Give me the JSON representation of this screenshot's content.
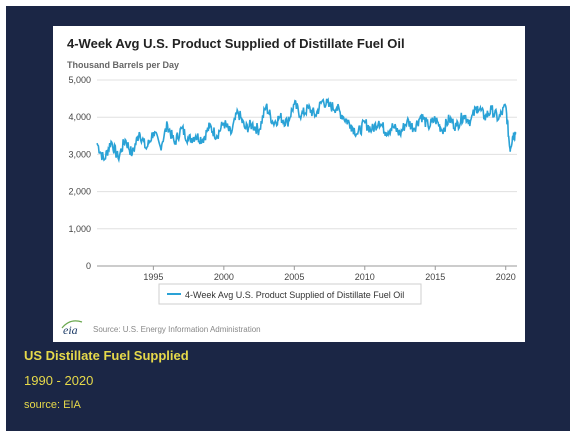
{
  "caption": {
    "title": "US Distillate Fuel Supplied",
    "years": "1990 - 2020",
    "source": "source: EIA"
  },
  "footer": {
    "logo_text": "eia",
    "source_text": "Source: U.S. Energy Information Administration"
  },
  "colors": {
    "background": "#1b2645",
    "caption_text": "#e6d94a",
    "series_line": "#2aa2d6",
    "gridline": "#e0e0e0"
  },
  "chart_data": {
    "type": "line",
    "title": "4-Week Avg U.S. Product Supplied of Distillate Fuel Oil",
    "subtitle": "Thousand Barrels per Day",
    "xlabel": "",
    "ylabel": "",
    "xlim": [
      1991,
      2020.8
    ],
    "ylim": [
      0,
      5000
    ],
    "x_ticks": [
      "1995",
      "2000",
      "2005",
      "2010",
      "2015",
      "2020"
    ],
    "y_ticks": [
      "0",
      "1,000",
      "2,000",
      "3,000",
      "4,000",
      "5,000"
    ],
    "grid": "horizontal",
    "legend_position": "bottom",
    "series": [
      {
        "name": "4-Week Avg U.S. Product Supplied of Distillate Fuel Oil",
        "x": [
          1991.0,
          1991.5,
          1992.0,
          1992.5,
          1993.0,
          1993.5,
          1994.0,
          1994.5,
          1995.0,
          1995.5,
          1996.0,
          1996.5,
          1997.0,
          1997.5,
          1998.0,
          1998.5,
          1999.0,
          1999.5,
          2000.0,
          2000.5,
          2001.0,
          2001.5,
          2002.0,
          2002.5,
          2003.0,
          2003.5,
          2004.0,
          2004.5,
          2005.0,
          2005.5,
          2006.0,
          2006.5,
          2007.0,
          2007.5,
          2008.0,
          2008.5,
          2009.0,
          2009.5,
          2010.0,
          2010.5,
          2011.0,
          2011.5,
          2012.0,
          2012.5,
          2013.0,
          2013.5,
          2014.0,
          2014.5,
          2015.0,
          2015.5,
          2016.0,
          2016.5,
          2017.0,
          2017.5,
          2018.0,
          2018.5,
          2019.0,
          2019.5,
          2020.0,
          2020.3,
          2020.5,
          2020.7
        ],
        "values": [
          3300,
          2850,
          3350,
          2900,
          3400,
          3000,
          3600,
          3150,
          3600,
          3200,
          3800,
          3300,
          3700,
          3400,
          3500,
          3400,
          3750,
          3500,
          3850,
          3550,
          4150,
          3700,
          3800,
          3650,
          4300,
          3850,
          4000,
          3850,
          4350,
          4050,
          4250,
          4050,
          4450,
          4300,
          4250,
          4000,
          3800,
          3550,
          3850,
          3650,
          3900,
          3600,
          3750,
          3550,
          3900,
          3700,
          4050,
          3750,
          3950,
          3650,
          3950,
          3750,
          4050,
          3900,
          4300,
          4000,
          4200,
          3950,
          4300,
          3150,
          3500,
          3600
        ]
      }
    ]
  }
}
